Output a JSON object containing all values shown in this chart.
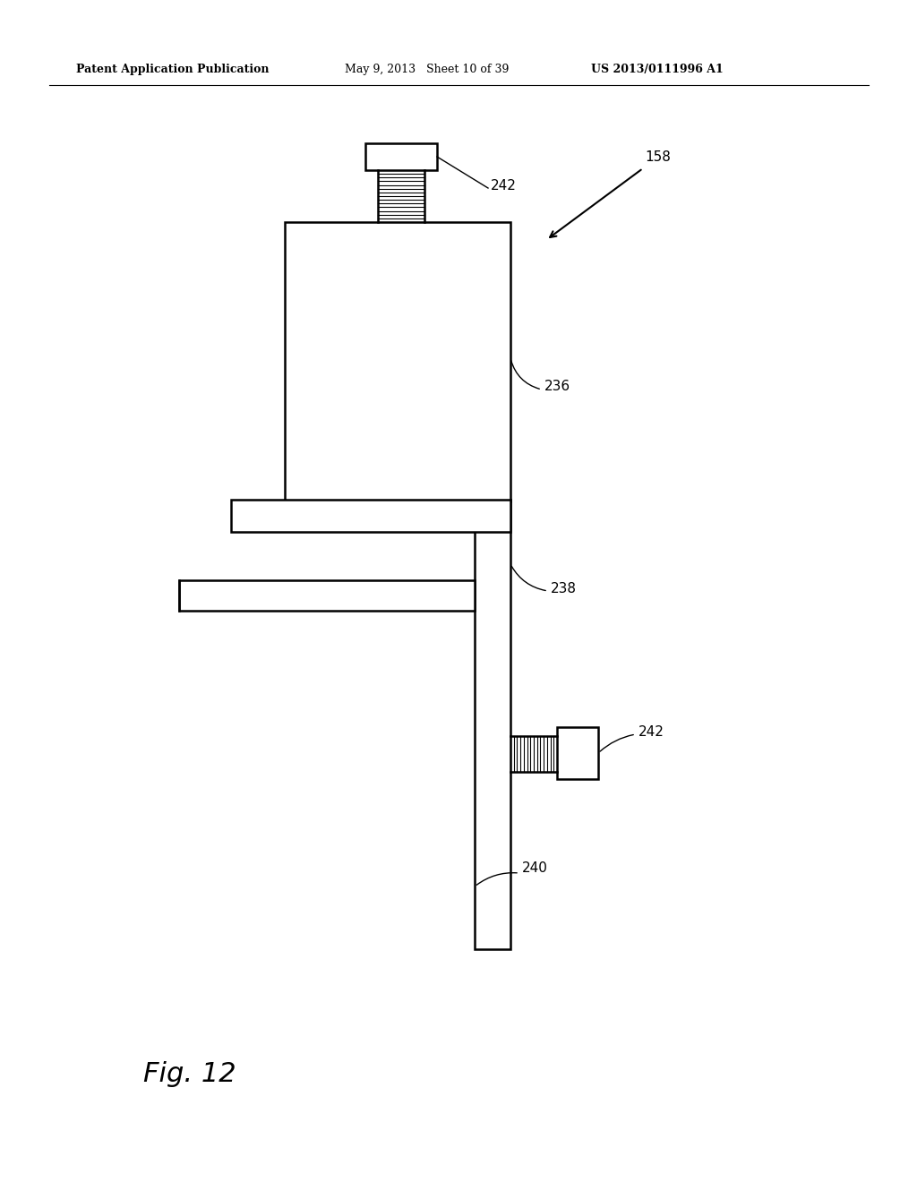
{
  "bg_color": "#ffffff",
  "header_left": "Patent Application Publication",
  "header_mid": "May 9, 2013   Sheet 10 of 39",
  "header_right": "US 2013/0111996 A1",
  "fig_label": "Fig. 12",
  "ref_158": "158",
  "ref_236": "236",
  "ref_238": "238",
  "ref_240": "240",
  "ref_242_top": "242",
  "ref_242_bot": "242",
  "line_color": "#000000",
  "line_width": 1.8
}
